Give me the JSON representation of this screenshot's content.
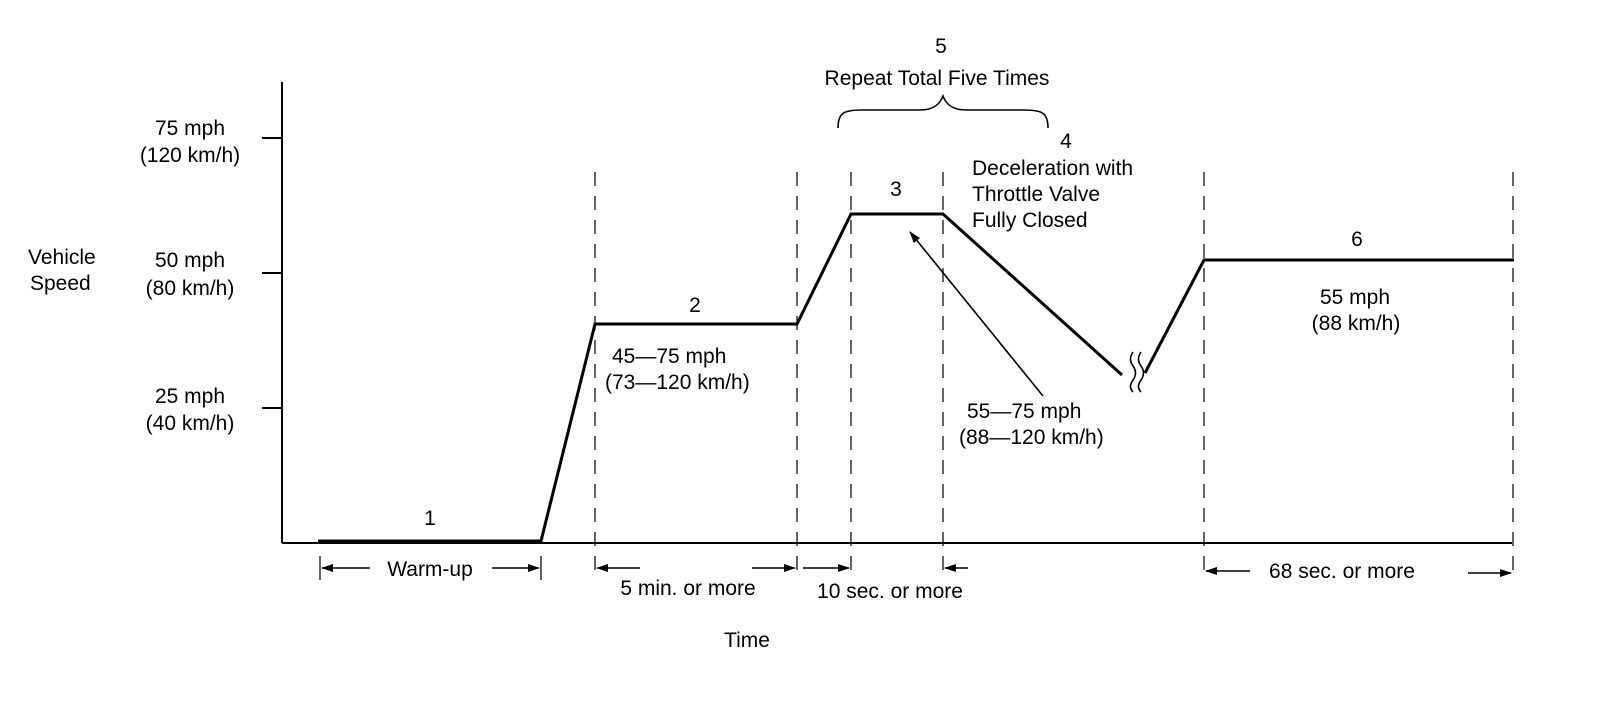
{
  "axes": {
    "y_title": [
      "Vehicle",
      "Speed"
    ],
    "x_title": "Time",
    "y_ticks": [
      {
        "mph": "75 mph",
        "kmh": "(120 km/h)"
      },
      {
        "mph": "50 mph",
        "kmh": "(80 km/h)"
      },
      {
        "mph": "25 mph",
        "kmh": "(40 km/h)"
      }
    ]
  },
  "steps": {
    "s1": "1",
    "s2": "2",
    "s3": "3",
    "s4": {
      "number": "4",
      "lines": [
        "Deceleration with",
        "Throttle Valve",
        "Fully Closed"
      ]
    },
    "s5": {
      "number": "5",
      "text": "Repeat Total Five Times"
    },
    "s6": "6"
  },
  "labels": {
    "range2": [
      "45—75 mph",
      "(73—120 km/h)"
    ],
    "range3": [
      "55—75 mph",
      "(88—120 km/h)"
    ],
    "speed6": [
      "55 mph",
      "(88 km/h)"
    ]
  },
  "durations": {
    "warmup": "Warm-up",
    "d2": "5 min. or more",
    "d3": "10 sec. or more",
    "d6": "68 sec. or more"
  },
  "colors": {
    "line": "#000000",
    "background": "#ffffff"
  }
}
